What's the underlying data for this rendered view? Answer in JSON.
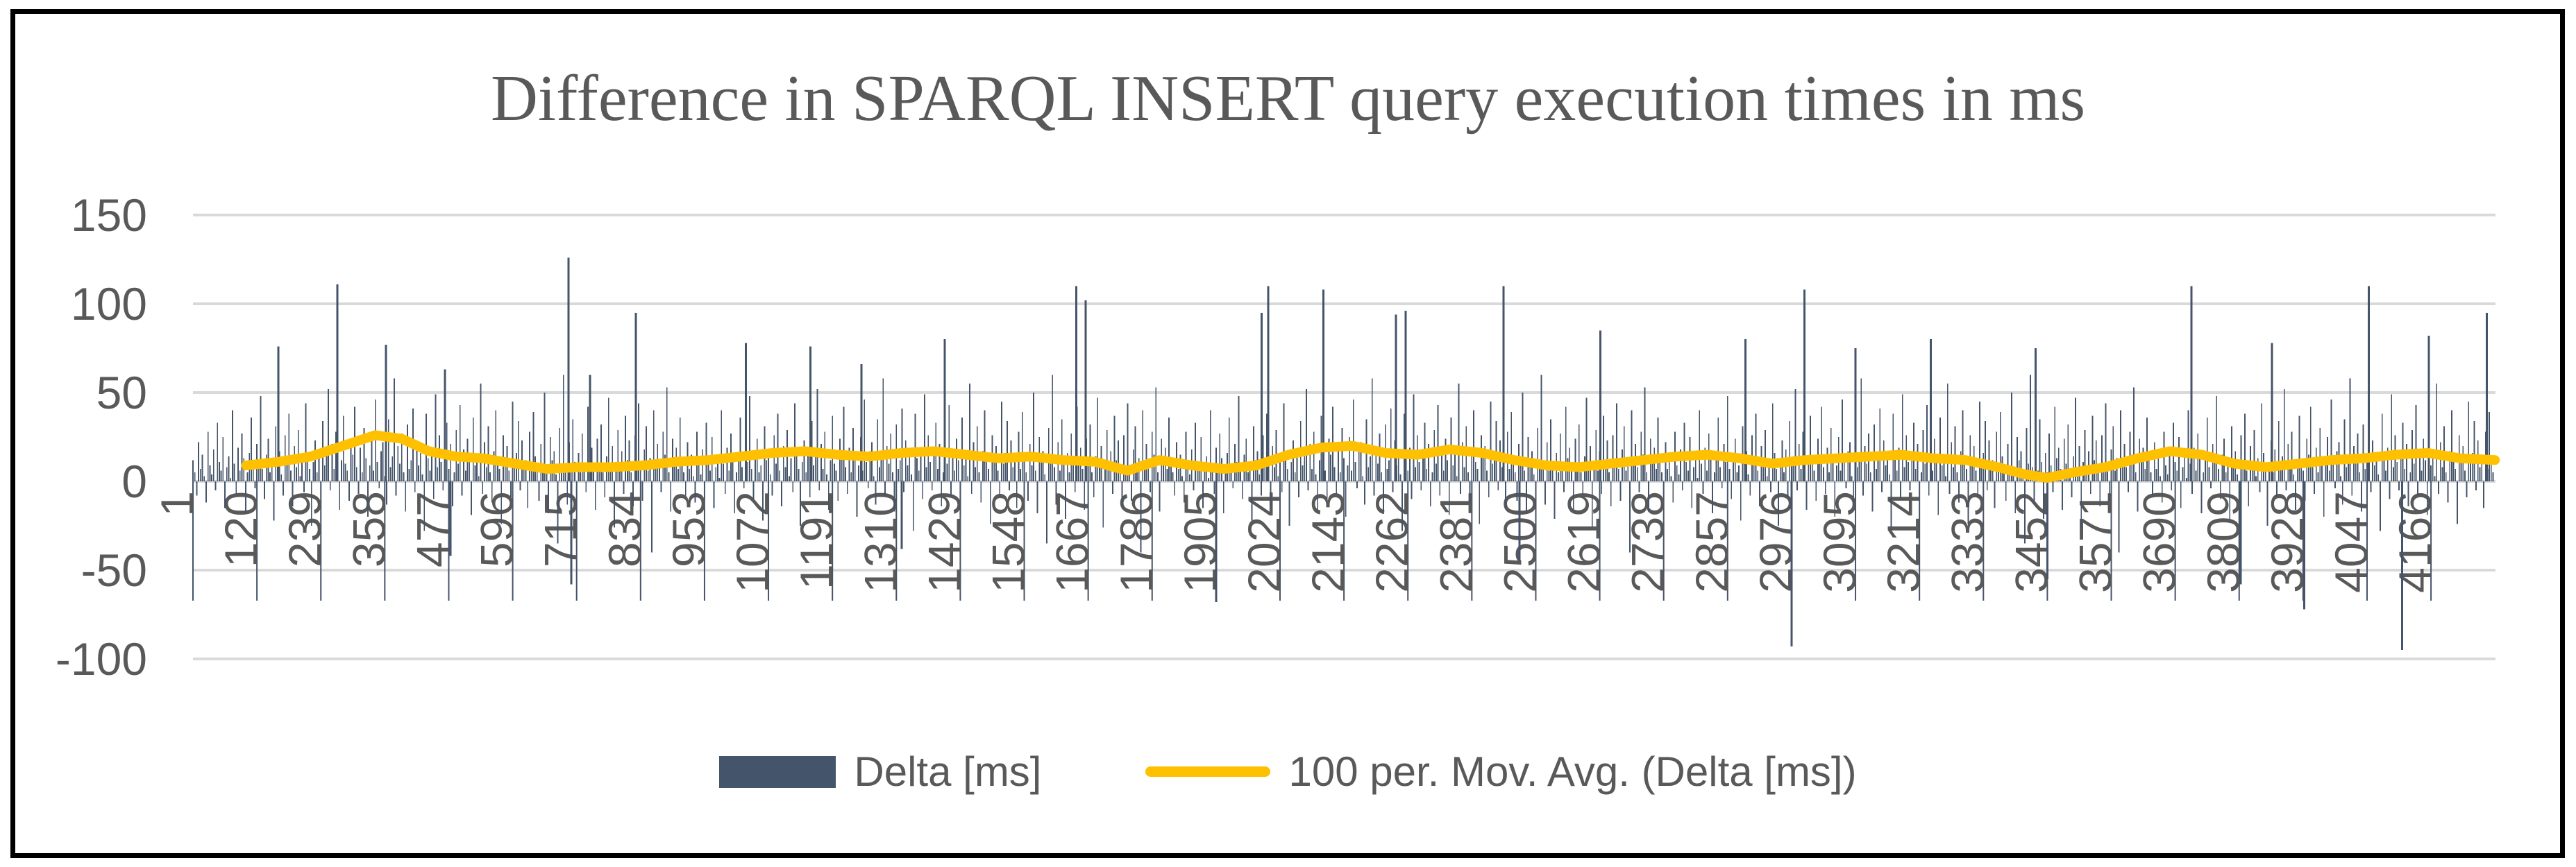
{
  "title": "Difference in SPARQL INSERT query execution times in ms",
  "colors": {
    "bar": "#44546A",
    "line": "#FFC000",
    "gridline": "#D9D9D9",
    "text": "#595959",
    "border": "#000000"
  },
  "legend": {
    "delta_label": "Delta [ms]",
    "movavg_label": "100 per. Mov. Avg. (Delta [ms])"
  },
  "chart_data": {
    "type": "bar",
    "title": "Difference in SPARQL INSERT query execution times in ms",
    "xlabel": "",
    "ylabel": "",
    "ylim": [
      -100,
      150
    ],
    "grid": true,
    "legend_position": "bottom",
    "y_ticks": [
      150,
      100,
      50,
      0,
      -50,
      -100
    ],
    "x_tick_labels": [
      "1",
      "120",
      "239",
      "358",
      "477",
      "596",
      "715",
      "834",
      "953",
      "1072",
      "1191",
      "1310",
      "1429",
      "1548",
      "1667",
      "1786",
      "1905",
      "2024",
      "2143",
      "2262",
      "2381",
      "2500",
      "2619",
      "2738",
      "2857",
      "2976",
      "3095",
      "3214",
      "3333",
      "3452",
      "3571",
      "3690",
      "3809",
      "3928",
      "4047",
      "4166"
    ],
    "x_tick_step": 119,
    "x_max_category": 4285,
    "series": [
      {
        "name": "Delta [ms]",
        "type": "bar",
        "color": "#44546A",
        "sampled": true,
        "sample_note": "approx. 4285 noisy per-query deltas in ms; representative sampled values below, tiled by the renderer for texture",
        "sample_values": [
          12,
          5,
          -8,
          22,
          7,
          15,
          3,
          -12,
          28,
          9,
          4,
          18,
          -5,
          33,
          11,
          6,
          25,
          -15,
          8,
          14,
          2,
          40,
          10,
          -7,
          19,
          6,
          27,
          13,
          -18,
          5,
          16,
          36,
          8,
          -4,
          21,
          11,
          48,
          7,
          -10,
          15,
          24,
          5,
          9,
          -22,
          31,
          12,
          17,
          4,
          -8,
          26,
          10,
          38,
          6,
          -14,
          20,
          8,
          29,
          3,
          13,
          -6,
          44,
          16,
          7,
          -25,
          11,
          23,
          5,
          18,
          -9,
          34,
          9,
          14,
          52,
          -5,
          21,
          7,
          28,
          4,
          -16,
          12,
          37,
          10,
          6,
          -11,
          24,
          15,
          42,
          8,
          -7,
          19,
          5,
          30,
          13,
          -20,
          9,
          25,
          6,
          46,
          11,
          -4,
          17,
          22,
          3,
          -13,
          35,
          8,
          14,
          58,
          -8,
          20,
          10,
          27,
          5,
          -17,
          32,
          7,
          12,
          41,
          -6,
          23,
          9,
          16,
          4,
          -28,
          38,
          13,
          6,
          19,
          -10,
          49,
          8,
          26,
          11,
          -5,
          15,
          33,
          7,
          21,
          -14,
          5,
          29,
          10,
          43,
          -8,
          18,
          6,
          24,
          12,
          -19,
          36,
          9,
          15,
          3,
          55,
          -7,
          22,
          8,
          31,
          5,
          -12,
          17,
          40,
          11,
          7,
          -24,
          26,
          13,
          20,
          6,
          -9,
          45,
          10,
          16,
          34,
          -5,
          23,
          8,
          12,
          -15,
          28,
          7,
          39,
          14,
          5,
          -11,
          21,
          9,
          50,
          6,
          -18,
          25,
          12,
          17,
          4,
          -35,
          30,
          10,
          60,
          8,
          -13,
          22,
          6,
          35,
          11,
          -21,
          16,
          5,
          27,
          9,
          -6,
          42,
          13,
          19,
          7,
          -16,
          24,
          10,
          32,
          5,
          -9,
          14,
          47,
          8,
          20,
          -26,
          11,
          29,
          6,
          17,
          -7,
          37,
          12,
          23,
          5,
          -14,
          26,
          9,
          44,
          7,
          -11,
          18,
          31,
          6,
          13,
          -40,
          40,
          10,
          21,
          8,
          -6,
          28,
          15,
          53,
          5,
          -17,
          24,
          11,
          19,
          7,
          36
        ],
        "outliers": [
          {
            "x": 160,
            "v": 76
          },
          {
            "x": 270,
            "v": 111
          },
          {
            "x": 360,
            "v": 77
          },
          {
            "x": 470,
            "v": 63
          },
          {
            "x": 700,
            "v": 126
          },
          {
            "x": 740,
            "v": 60
          },
          {
            "x": 825,
            "v": 95
          },
          {
            "x": 1030,
            "v": 78
          },
          {
            "x": 1150,
            "v": 76
          },
          {
            "x": 1245,
            "v": 66
          },
          {
            "x": 1400,
            "v": 80
          },
          {
            "x": 1645,
            "v": 110
          },
          {
            "x": 1662,
            "v": 102
          },
          {
            "x": 1990,
            "v": 95
          },
          {
            "x": 2002,
            "v": 110
          },
          {
            "x": 2105,
            "v": 108
          },
          {
            "x": 2240,
            "v": 94
          },
          {
            "x": 2258,
            "v": 96
          },
          {
            "x": 2440,
            "v": 110
          },
          {
            "x": 2620,
            "v": 85
          },
          {
            "x": 2890,
            "v": 80
          },
          {
            "x": 3000,
            "v": 108
          },
          {
            "x": 3095,
            "v": 75
          },
          {
            "x": 3235,
            "v": 80
          },
          {
            "x": 3430,
            "v": 75
          },
          {
            "x": 3720,
            "v": 110
          },
          {
            "x": 3870,
            "v": 78
          },
          {
            "x": 4050,
            "v": 110
          },
          {
            "x": 4162,
            "v": 82
          },
          {
            "x": 4270,
            "v": 95
          },
          {
            "x": 480,
            "v": -42
          },
          {
            "x": 705,
            "v": -58
          },
          {
            "x": 1320,
            "v": -38
          },
          {
            "x": 1905,
            "v": -68
          },
          {
            "x": 2470,
            "v": -45
          },
          {
            "x": 2976,
            "v": -93
          },
          {
            "x": 3452,
            "v": -55
          },
          {
            "x": 3812,
            "v": -58
          },
          {
            "x": 3930,
            "v": -72
          },
          {
            "x": 4112,
            "v": -95
          }
        ]
      },
      {
        "name": "100 per. Mov. Avg. (Delta [ms])",
        "type": "line",
        "color": "#FFC000",
        "points": [
          [
            100,
            9
          ],
          [
            160,
            11
          ],
          [
            220,
            14
          ],
          [
            280,
            20
          ],
          [
            340,
            26
          ],
          [
            390,
            24
          ],
          [
            440,
            17
          ],
          [
            490,
            14
          ],
          [
            540,
            13
          ],
          [
            600,
            10
          ],
          [
            660,
            7
          ],
          [
            720,
            8
          ],
          [
            780,
            8
          ],
          [
            840,
            9
          ],
          [
            900,
            11
          ],
          [
            960,
            12
          ],
          [
            1020,
            14
          ],
          [
            1080,
            16
          ],
          [
            1140,
            17
          ],
          [
            1200,
            15
          ],
          [
            1260,
            14
          ],
          [
            1320,
            16
          ],
          [
            1380,
            17
          ],
          [
            1440,
            15
          ],
          [
            1500,
            13
          ],
          [
            1560,
            14
          ],
          [
            1620,
            12
          ],
          [
            1680,
            11
          ],
          [
            1740,
            6
          ],
          [
            1800,
            12
          ],
          [
            1860,
            9
          ],
          [
            1920,
            7
          ],
          [
            1980,
            9
          ],
          [
            2040,
            15
          ],
          [
            2100,
            19
          ],
          [
            2160,
            20
          ],
          [
            2220,
            16
          ],
          [
            2280,
            15
          ],
          [
            2340,
            18
          ],
          [
            2400,
            16
          ],
          [
            2460,
            12
          ],
          [
            2520,
            9
          ],
          [
            2580,
            8
          ],
          [
            2640,
            10
          ],
          [
            2700,
            12
          ],
          [
            2760,
            14
          ],
          [
            2820,
            15
          ],
          [
            2880,
            13
          ],
          [
            2940,
            10
          ],
          [
            3000,
            12
          ],
          [
            3060,
            13
          ],
          [
            3120,
            14
          ],
          [
            3180,
            15
          ],
          [
            3240,
            13
          ],
          [
            3300,
            12
          ],
          [
            3360,
            8
          ],
          [
            3410,
            4
          ],
          [
            3452,
            2
          ],
          [
            3500,
            5
          ],
          [
            3560,
            8
          ],
          [
            3620,
            13
          ],
          [
            3680,
            17
          ],
          [
            3740,
            15
          ],
          [
            3800,
            10
          ],
          [
            3860,
            8
          ],
          [
            3920,
            10
          ],
          [
            3980,
            12
          ],
          [
            4040,
            13
          ],
          [
            4100,
            15
          ],
          [
            4160,
            16
          ],
          [
            4220,
            13
          ],
          [
            4285,
            12
          ]
        ]
      }
    ]
  }
}
